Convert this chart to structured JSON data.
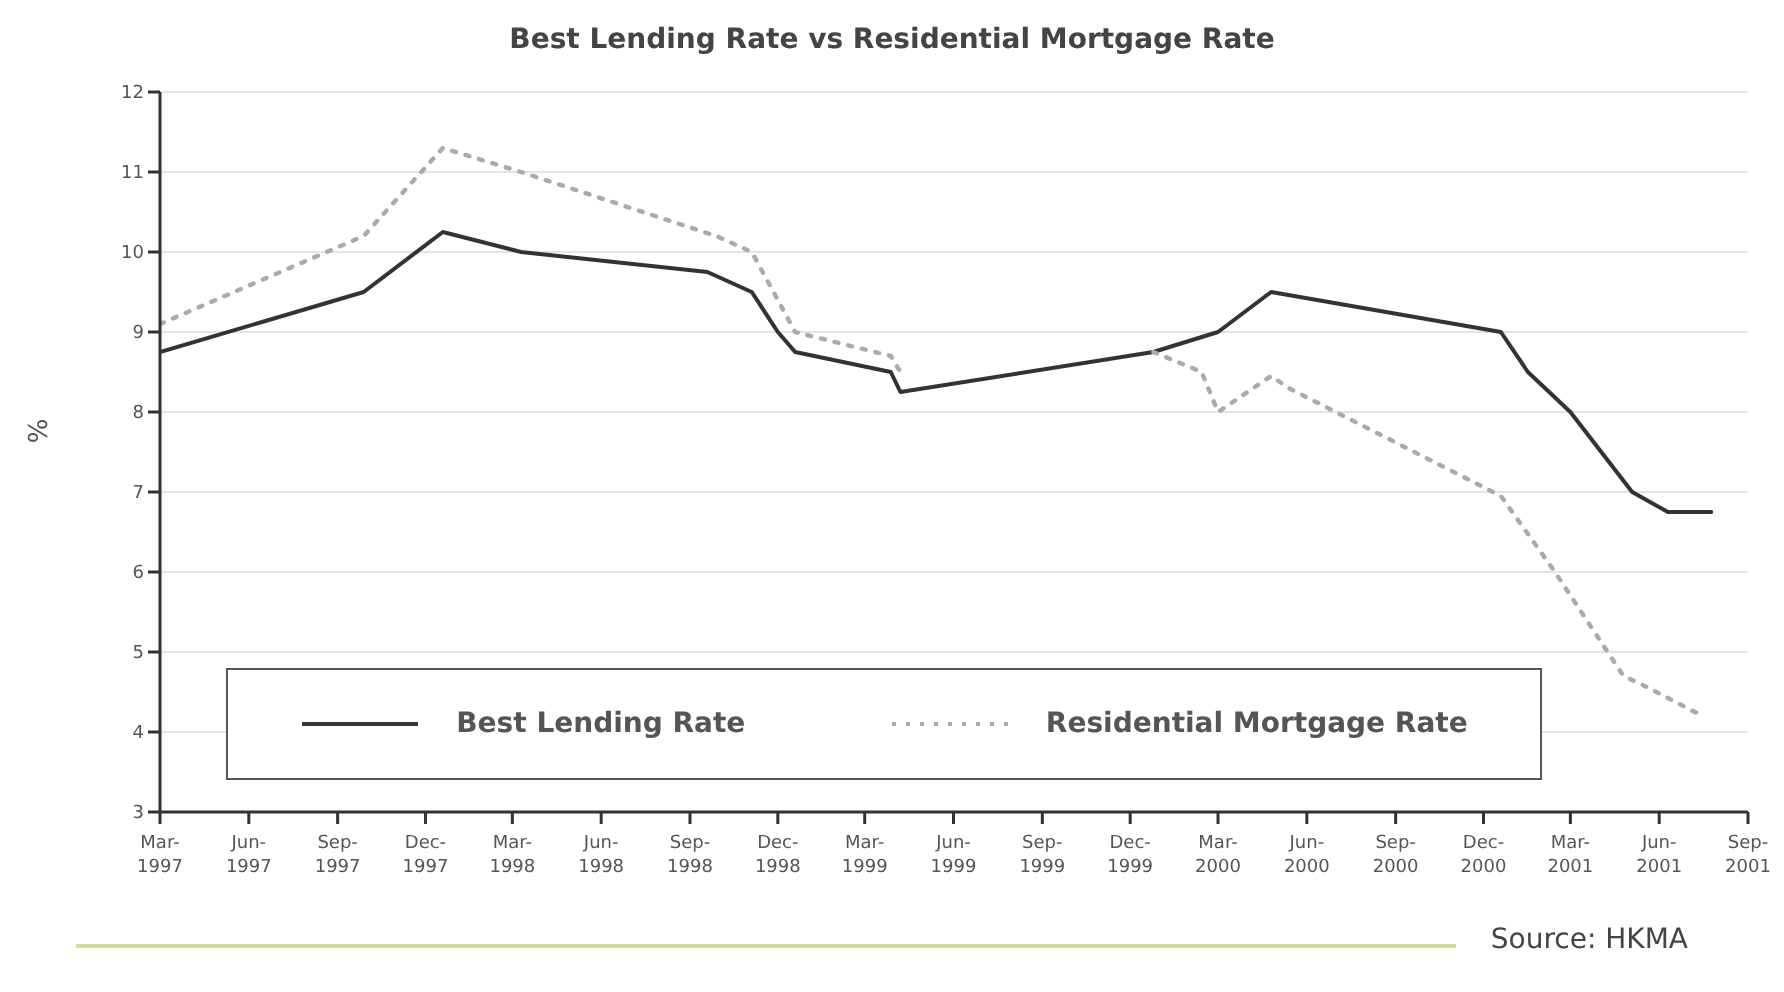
{
  "chart_data": {
    "type": "line",
    "title": "Best Lending Rate vs Residential Mortgage Rate",
    "ylabel": "%",
    "xlim": [
      "1997-03",
      "2001-09"
    ],
    "xticks": [
      {
        "value": "1997-03",
        "label": "Mar-\n1997"
      },
      {
        "value": "1997-06",
        "label": "Jun-\n1997"
      },
      {
        "value": "1997-09",
        "label": "Sep-\n1997"
      },
      {
        "value": "1997-12",
        "label": "Dec-\n1997"
      },
      {
        "value": "1998-03",
        "label": "Mar-\n1998"
      },
      {
        "value": "1998-06",
        "label": "Jun-\n1998"
      },
      {
        "value": "1998-09",
        "label": "Sep-\n1998"
      },
      {
        "value": "1998-12",
        "label": "Dec-\n1998"
      },
      {
        "value": "1999-03",
        "label": "Mar-\n1999"
      },
      {
        "value": "1999-06",
        "label": "Jun-\n1999"
      },
      {
        "value": "1999-09",
        "label": "Sep-\n1999"
      },
      {
        "value": "1999-12",
        "label": "Dec-\n1999"
      },
      {
        "value": "2000-03",
        "label": "Mar-\n2000"
      },
      {
        "value": "2000-06",
        "label": "Jun-\n2000"
      },
      {
        "value": "2000-09",
        "label": "Sep-\n2000"
      },
      {
        "value": "2000-12",
        "label": "Dec-\n2000"
      },
      {
        "value": "2001-03",
        "label": "Mar-\n2001"
      },
      {
        "value": "2001-06",
        "label": "Jun-\n2001"
      },
      {
        "value": "2001-09",
        "label": "Sep-\n2001"
      }
    ],
    "ylim": [
      3,
      12
    ],
    "yticks": [
      3,
      4,
      5,
      6,
      7,
      8,
      9,
      10,
      11,
      12
    ],
    "grid": "y",
    "legend": "bottom",
    "marker": "none",
    "series": [
      {
        "name": "Best Lending Rate",
        "color": "#333333",
        "line_style": "solid",
        "x": [
          "1997-03-01",
          "1997-09-28",
          "1997-12-19",
          "1998-03-10",
          "1998-09-19",
          "1998-11-04",
          "1998-12-01",
          "1998-12-19",
          "1999-03-28",
          "1999-04-07",
          "1999-12-25",
          "2000-03-01",
          "2000-04-25",
          "2000-12-19",
          "2001-01-16",
          "2001-03-01",
          "2001-05-04",
          "2001-06-10",
          "2001-07-25"
        ],
        "values": [
          8.75,
          9.5,
          10.25,
          10.0,
          9.75,
          9.5,
          9.0,
          8.75,
          8.5,
          8.25,
          8.75,
          9.0,
          9.5,
          9.0,
          8.5,
          8.0,
          7.0,
          6.75,
          6.75
        ]
      },
      {
        "name": "Residential Mortgage Rate",
        "color": "#aaaaaa",
        "line_style": "dotted",
        "x": [
          "1997-03-01",
          "1997-09-28",
          "1997-12-19",
          "1998-03-10",
          "1998-09-28",
          "1998-11-04",
          "1998-12-19",
          "1999-03-28",
          "1999-04-07",
          "1999-09-01",
          "1999-12-25",
          "2000-02-13",
          "2000-03-01",
          "2000-04-25",
          "2000-05-13",
          "2000-12-19",
          "2001-02-13",
          "2001-04-25",
          "2001-05-13",
          "2001-07-16"
        ],
        "values": [
          9.1,
          10.2,
          11.3,
          11.0,
          10.2,
          10.0,
          9.0,
          8.7,
          8.5,
          null,
          8.75,
          8.5,
          8.0,
          8.45,
          8.3,
          6.95,
          6.0,
          4.7,
          4.6,
          4.2
        ]
      }
    ],
    "annotations": [
      "Source: HKMA"
    ]
  }
}
